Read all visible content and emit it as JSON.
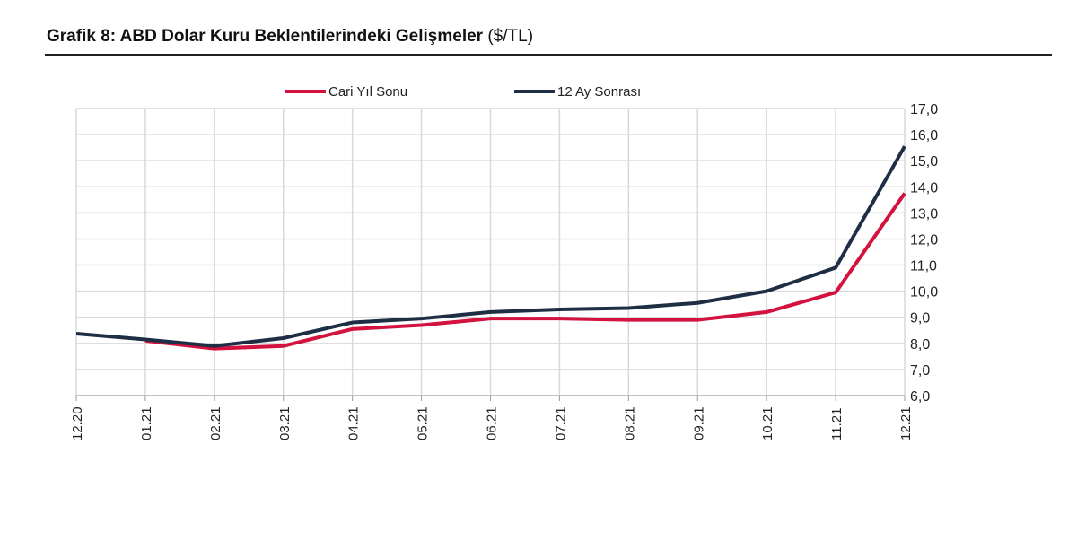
{
  "title_bold": "Grafik 8: ABD Dolar Kuru Beklentilerindeki Gelişmeler",
  "title_unit": "($/TL)",
  "chart_data": {
    "type": "line",
    "title": "Grafik 8: ABD Dolar Kuru Beklentilerindeki Gelişmeler ($/TL)",
    "xlabel": "",
    "ylabel": "",
    "x": [
      "12.20",
      "01.21",
      "02.21",
      "03.21",
      "04.21",
      "05.21",
      "06.21",
      "07.21",
      "08.21",
      "09.21",
      "10.21",
      "11.21",
      "12.21"
    ],
    "ylim": [
      6.0,
      17.0
    ],
    "yticks": [
      "6,0",
      "7,0",
      "8,0",
      "9,0",
      "10,0",
      "11,0",
      "12,0",
      "13,0",
      "14,0",
      "15,0",
      "16,0",
      "17,0"
    ],
    "grid": true,
    "legend_position": "top",
    "series": [
      {
        "name": "Cari Yıl Sonu",
        "color": "#d3123f",
        "values": [
          null,
          8.1,
          7.8,
          7.9,
          8.55,
          8.7,
          8.95,
          8.95,
          8.9,
          8.9,
          9.2,
          9.95,
          13.75
        ]
      },
      {
        "name": "12 Ay Sonrası",
        "color": "#1e2f45",
        "values": [
          8.37,
          8.15,
          7.9,
          8.2,
          8.8,
          8.95,
          9.2,
          9.3,
          9.35,
          9.55,
          10.0,
          10.9,
          15.55
        ]
      }
    ]
  }
}
